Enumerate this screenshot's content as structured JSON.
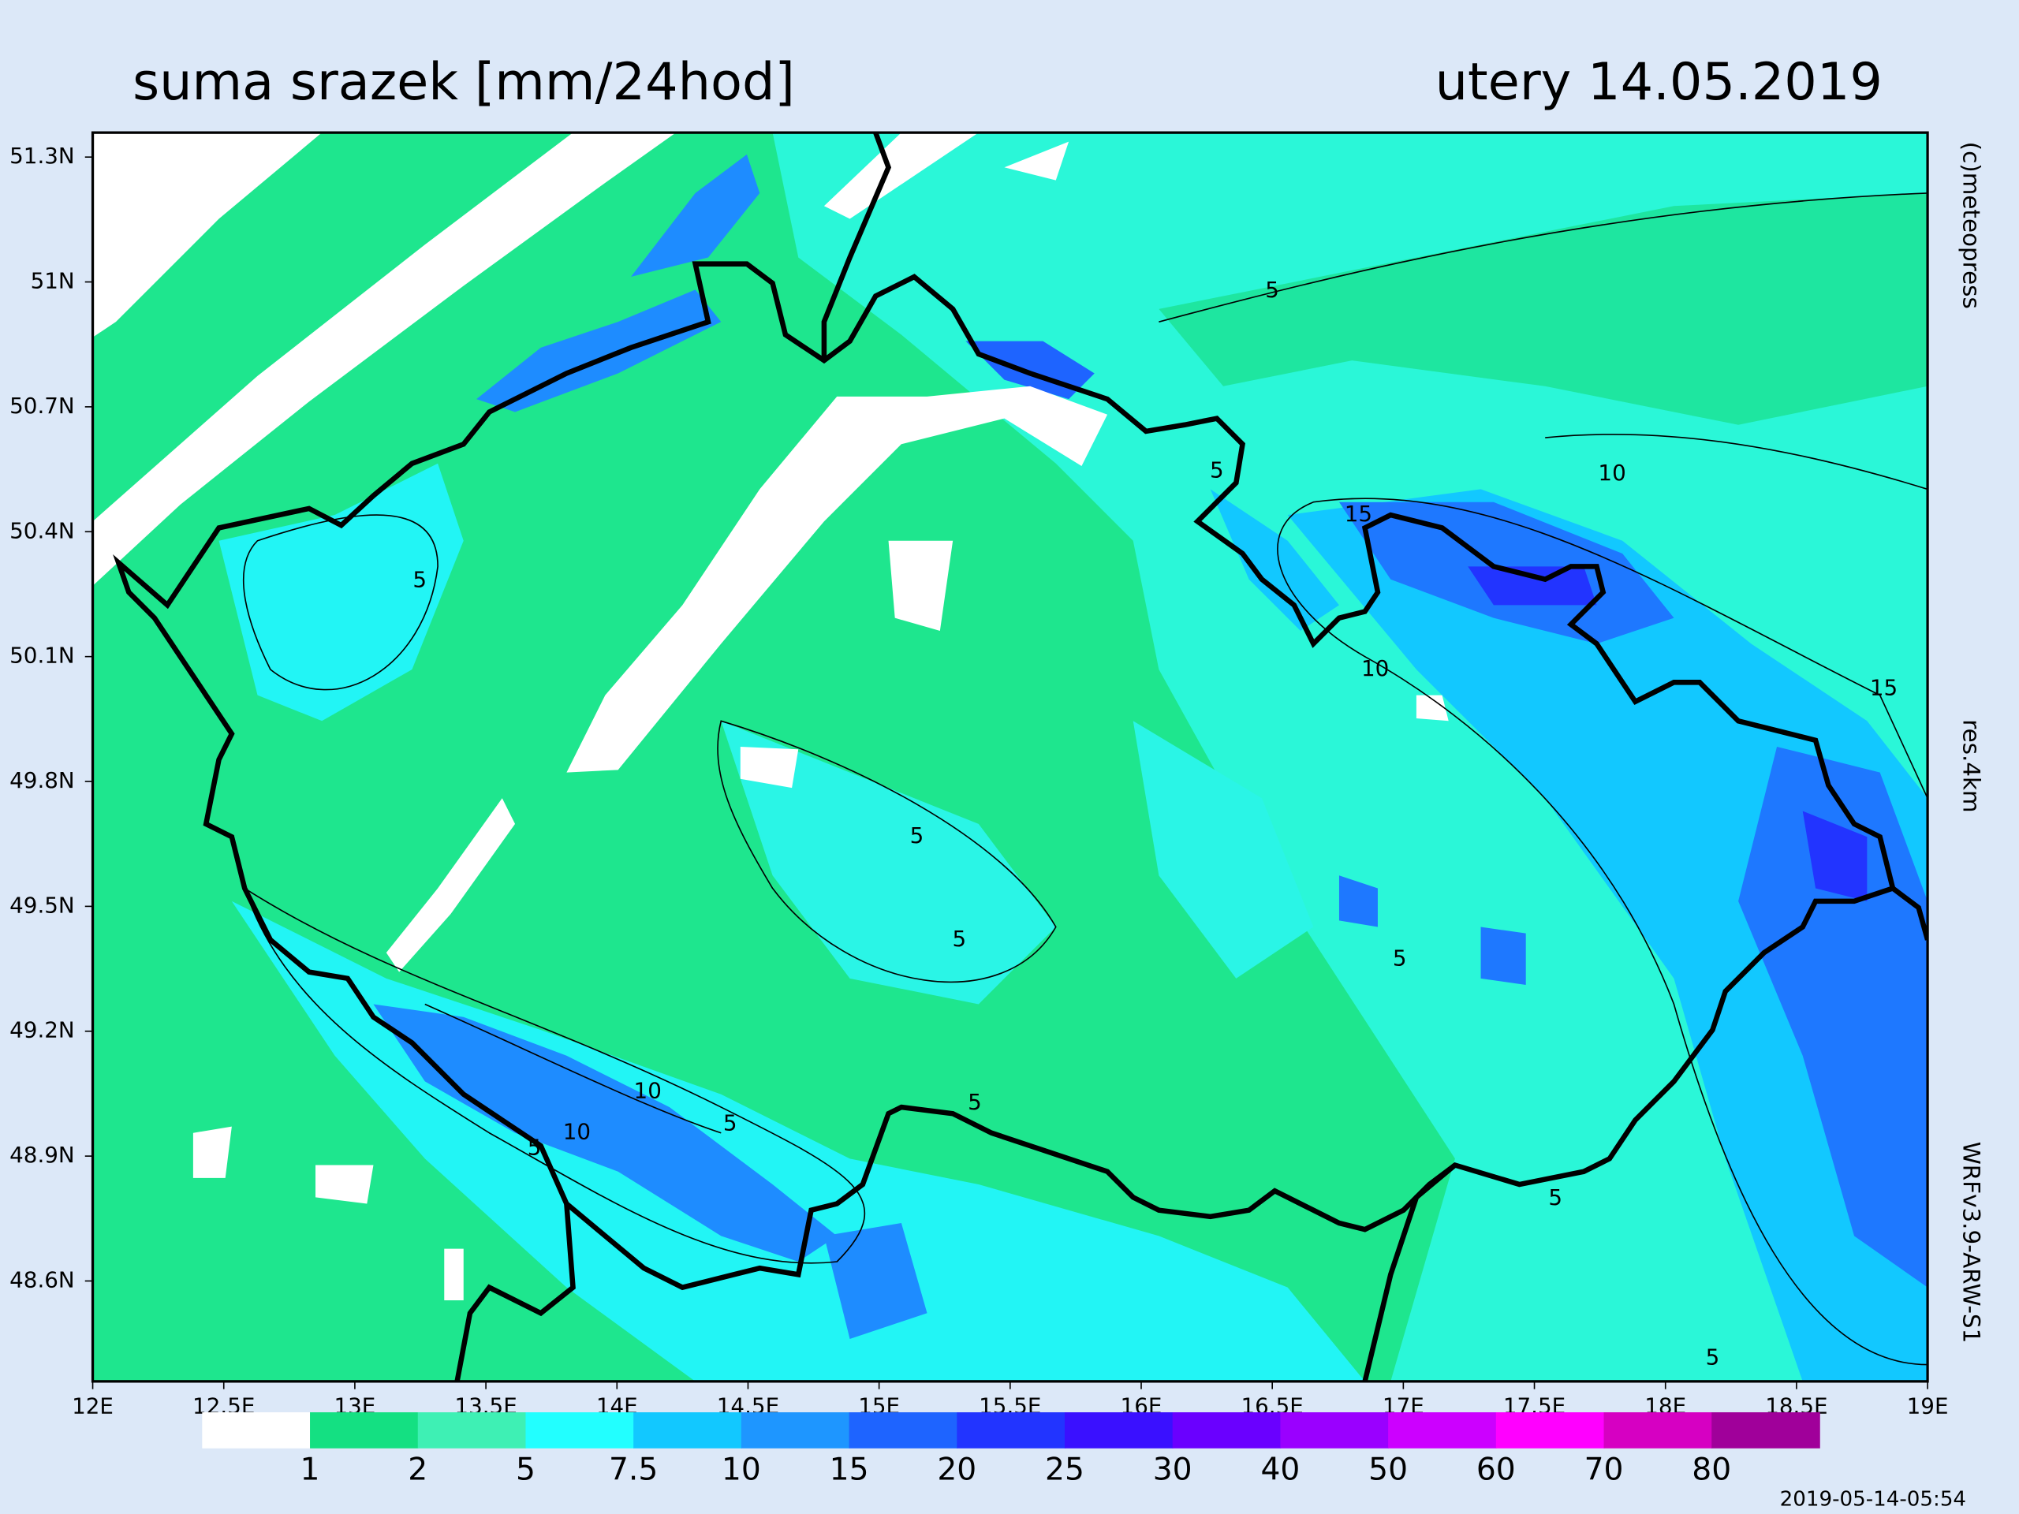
{
  "header": {
    "title": "suma srazek [mm/24hod]",
    "date": "utery 14.05.2019"
  },
  "lat_labels": [
    "51.3N",
    "51N",
    "50.7N",
    "50.4N",
    "50.1N",
    "49.8N",
    "49.5N",
    "49.2N",
    "48.9N",
    "48.6N"
  ],
  "lon_labels": [
    "12E",
    "12.5E",
    "13E",
    "13.5E",
    "14E",
    "14.5E",
    "15E",
    "15.5E",
    "16E",
    "16.5E",
    "17E",
    "17.5E",
    "18E",
    "18.5E",
    "19E"
  ],
  "contour_labels": [
    "5",
    "5",
    "5",
    "5",
    "5",
    "5",
    "5",
    "5",
    "5",
    "5",
    "5",
    "10",
    "10",
    "10",
    "10",
    "15",
    "15"
  ],
  "side_texts": [
    "(c)meteopress",
    "res.4km",
    "WRFv3.9-ARW-S1"
  ],
  "legend": {
    "colors": [
      "#ffffff",
      "#14e082",
      "#3ef0b4",
      "#22ffff",
      "#12c8ff",
      "#1e96ff",
      "#1e64ff",
      "#2234ff",
      "#3a10ff",
      "#6a00ff",
      "#9a00ff",
      "#cc00ff",
      "#ff00ff",
      "#d600c2",
      "#a0009a"
    ],
    "labels": [
      "1",
      "2",
      "5",
      "7.5",
      "10",
      "15",
      "20",
      "25",
      "30",
      "40",
      "50",
      "60",
      "70",
      "80"
    ]
  },
  "timestamp": "2019-05-14-05:54"
}
